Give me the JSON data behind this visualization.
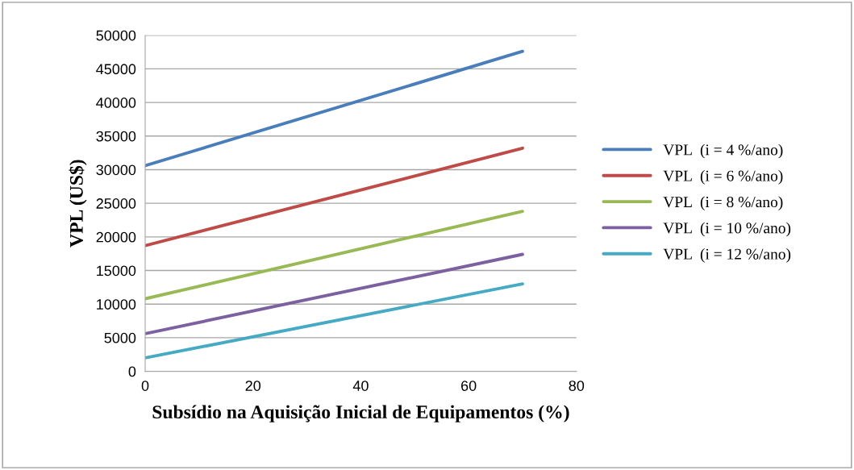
{
  "chart_data": {
    "type": "line",
    "xlabel": "Subsídio na Aquisição Inicial de Equipamentos (%)",
    "ylabel": "VPL (US$)",
    "x": [
      0,
      70
    ],
    "series": [
      {
        "name": "VPL  (i = 4 %/ano)",
        "color": "#4a7ebb",
        "values": [
          30600,
          47600
        ]
      },
      {
        "name": "VPL  (i = 6 %/ano)",
        "color": "#be4b48",
        "values": [
          18700,
          33200
        ]
      },
      {
        "name": "VPL  (i = 8 %/ano)",
        "color": "#98b954",
        "values": [
          10800,
          23800
        ]
      },
      {
        "name": "VPL  (i = 10 %/ano)",
        "color": "#7d60a0",
        "values": [
          5600,
          17400
        ]
      },
      {
        "name": "VPL  (i = 12 %/ano)",
        "color": "#46aac5",
        "values": [
          2000,
          13000
        ]
      }
    ],
    "xlim": [
      0,
      80
    ],
    "xticks": [
      0,
      20,
      40,
      60,
      80
    ],
    "ylim": [
      0,
      50000
    ],
    "yticks": [
      0,
      5000,
      10000,
      15000,
      20000,
      25000,
      30000,
      35000,
      40000,
      45000,
      50000
    ],
    "grid": "y",
    "legend": "right",
    "marker": "none",
    "line_style": "solid"
  }
}
